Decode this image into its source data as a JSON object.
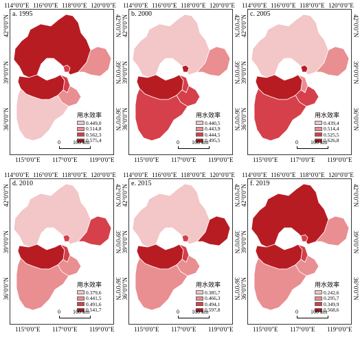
{
  "colors": {
    "class1": "#f3c6c8",
    "class2": "#e98e91",
    "class3": "#d5404b",
    "class4": "#b81c23",
    "boundary": "#ffffff"
  },
  "legend_title": "用水效率",
  "scale_label": "100 km",
  "scale_zero": "0",
  "top_ticks": [
    "114°0'0\"E",
    "116°0'0\"E",
    "118°0'0\"E",
    "120°0'0\"E"
  ],
  "bottom_ticks": [
    "115°0'0\"E",
    "117°0'0\"E",
    "119°0'0\"E"
  ],
  "lat_ticks": [
    "42°0'0\"N",
    "39°0'0\"N",
    "36°0'0\"N"
  ],
  "panels": [
    {
      "title": "a. 1995",
      "legend": [
        "0.449,0",
        "0.514,8",
        "0.562,3",
        "0.575,4"
      ],
      "regions": {
        "beijing": 3,
        "tianjin": 3,
        "hebei_north": 4,
        "hebei_mid": 4,
        "hebei_south": 1,
        "hebei_cangzhou": 2,
        "hebei_qinhuangdao": 2
      }
    },
    {
      "title": "b. 2000",
      "legend": [
        "0.440,5",
        "0.443,9",
        "0.444,5",
        "0.495,5"
      ],
      "regions": {
        "beijing": 4,
        "tianjin": 3,
        "hebei_north": 1,
        "hebei_mid": 4,
        "hebei_south": 3,
        "hebei_cangzhou": 3,
        "hebei_qinhuangdao": 2
      }
    },
    {
      "title": "c. 2005",
      "legend": [
        "0.439,4",
        "0.514,4",
        "0.525,5",
        "0.626,8"
      ],
      "regions": {
        "beijing": 4,
        "tianjin": 2,
        "hebei_north": 1,
        "hebei_mid": 4,
        "hebei_south": 3,
        "hebei_cangzhou": 3,
        "hebei_qinhuangdao": 2
      }
    },
    {
      "title": "d. 2010",
      "legend": [
        "0.379,6",
        "0.441,5",
        "0.491,6",
        "0.541,7"
      ],
      "regions": {
        "beijing": 3,
        "tianjin": 3,
        "hebei_north": 1,
        "hebei_mid": 4,
        "hebei_south": 2,
        "hebei_cangzhou": 2,
        "hebei_qinhuangdao": 3
      }
    },
    {
      "title": "e. 2015",
      "legend": [
        "0.385,7",
        "0.466,3",
        "0.494,1",
        "0.597,8"
      ],
      "regions": {
        "beijing": 3,
        "tianjin": 3,
        "hebei_north": 1,
        "hebei_mid": 4,
        "hebei_south": 2,
        "hebei_cangzhou": 2,
        "hebei_qinhuangdao": 4
      }
    },
    {
      "title": "f. 2019",
      "legend": [
        "0.242,6",
        "0.295,7",
        "0.349,9",
        "0.568,6"
      ],
      "regions": {
        "beijing": 3,
        "tianjin": 3,
        "hebei_north": 4,
        "hebei_mid": 4,
        "hebei_south": 2,
        "hebei_cangzhou": 2,
        "hebei_qinhuangdao": 2
      }
    }
  ]
}
